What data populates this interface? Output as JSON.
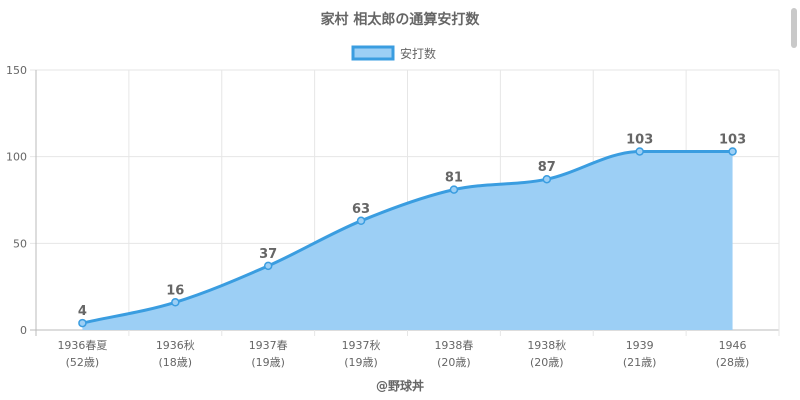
{
  "chart_data": {
    "type": "area",
    "title": "家村 相太郎の通算安打数",
    "legend": {
      "label": "安打数",
      "position": "top"
    },
    "categories": [
      [
        "1936春夏",
        "(52歳)"
      ],
      [
        "1936秋",
        "(18歳)"
      ],
      [
        "1937春",
        "(19歳)"
      ],
      [
        "1937秋",
        "(19歳)"
      ],
      [
        "1938春",
        "(20歳)"
      ],
      [
        "1938秋",
        "(20歳)"
      ],
      [
        "1939",
        "(21歳)"
      ],
      [
        "1946",
        "(28歳)"
      ]
    ],
    "series": [
      {
        "name": "安打数",
        "values": [
          4,
          16,
          37,
          63,
          81,
          87,
          103,
          103
        ]
      }
    ],
    "ylim": [
      0,
      150
    ],
    "yticks": [
      0,
      50,
      100,
      150
    ],
    "grid": true,
    "data_labels": true,
    "colors": {
      "line": "#3a9de0",
      "fill": "#9ccff5",
      "grid": "#e6e6e6",
      "text": "#666666"
    }
  },
  "footer": {
    "credit": "@野球丼"
  }
}
